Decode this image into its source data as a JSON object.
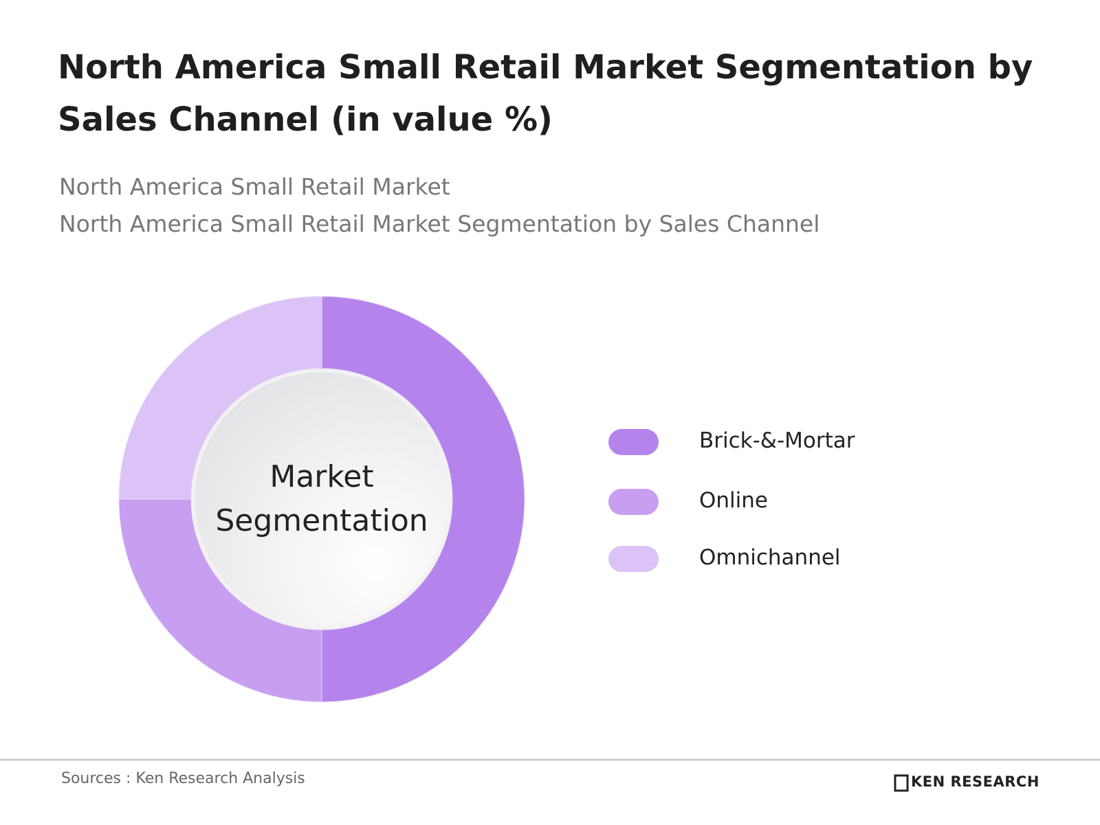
{
  "chart_data": {
    "type": "pie",
    "title": "North America Small Retail Market Segmentation by Sales Channel (in value %)",
    "subtitle": [
      "North America Small Retail Market",
      "North America Small Retail Market Segmentation by Sales Channel"
    ],
    "center_label": "Market Segmentation",
    "categories": [
      "Brick-&-Mortar",
      "Online",
      "Omnichannel"
    ],
    "values": [
      50,
      25,
      25
    ],
    "colors": [
      "#b484ec",
      "#c89ef0",
      "#dcc3f7"
    ],
    "legend": "right"
  },
  "footer": {
    "source": "Sources : Ken Research Analysis",
    "logo": "KEN RESEARCH"
  }
}
